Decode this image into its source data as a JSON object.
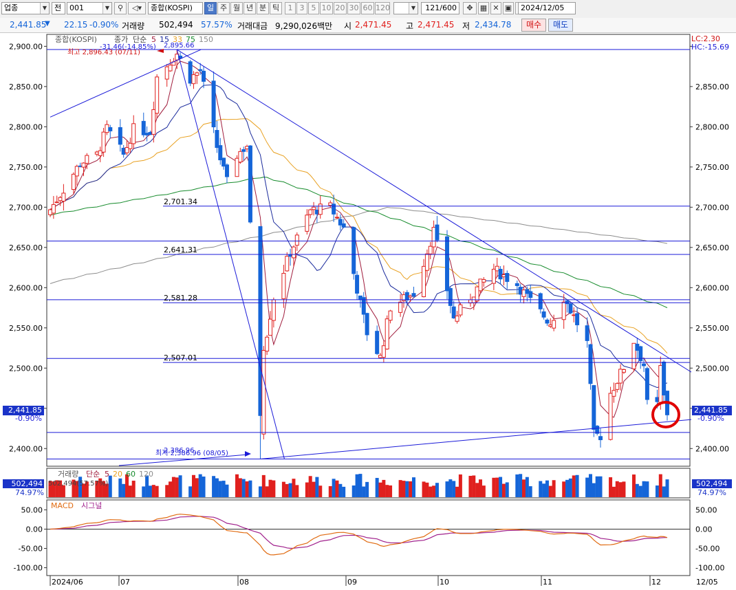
{
  "toolbar": {
    "market": "업종",
    "prefix": "전",
    "code": "001",
    "name": "종합(KOSPI)",
    "periods": [
      "일",
      "주",
      "월",
      "년",
      "분",
      "틱"
    ],
    "active_period": "일",
    "intervals": [
      "1",
      "3",
      "5",
      "10",
      "20",
      "30",
      "60",
      "120"
    ],
    "count": "121/600",
    "date": "2024/12/05"
  },
  "quote": {
    "price": "2,441.85",
    "change_arrow": "▼",
    "change": "22.15",
    "change_pct": "-0.90%",
    "volume_label": "거래량",
    "volume": "502,494",
    "volume_ratio": "57.57%",
    "amount_label": "거래대금",
    "amount": "9,290,026백만",
    "open_label": "시",
    "open": "2,471.45",
    "high_label": "고",
    "high": "2,471.45",
    "low_label": "저",
    "low": "2,434.78",
    "buy": "매수",
    "sell": "매도"
  },
  "colors": {
    "up": "#e0201e",
    "down": "#1565d8",
    "ma5": "#a01c3c",
    "ma15": "#1a2a9c",
    "ma33": "#e8a020",
    "ma75": "#148a2a",
    "ma150": "#8c8c8c",
    "trend": "#1a1ad8",
    "macd": "#e06a10",
    "signal": "#a0208c",
    "annotation": "#e00000"
  },
  "chart_data": {
    "type": "candlestick",
    "price_title": "종합(KOSPI)",
    "price_legend": [
      "종가",
      "단순",
      "5",
      "15",
      "33",
      "75",
      "150"
    ],
    "y_ticks": [
      2900,
      2850,
      2800,
      2750,
      2700,
      2650,
      2600,
      2550,
      2500,
      2450,
      2400
    ],
    "y_tick_labels": [
      "2,900.00",
      "2,850.00",
      "2,800.00",
      "2,750.00",
      "2,700.00",
      "2,650.00",
      "2,600.00",
      "2,550.00",
      "2,500.00",
      "2,450.00",
      "2,400.00"
    ],
    "ylim": [
      2378,
      2908
    ],
    "x_labels": [
      "2024/06",
      "07",
      "08",
      "09",
      "10",
      "11",
      "12",
      "12/05"
    ],
    "last_price": "2,441.85",
    "last_change": "-0.90%",
    "lc": "LC:2.30",
    "hc": "HC:-15.69",
    "high_annotation": "최고 2,896.43 (07/11)",
    "high_annotation2": "-31.46(-14.85%)",
    "high_value_label": "2,895.66",
    "low_annotation": "최저 2,386.96 (08/05)",
    "low_value_label": "2,386.96",
    "fib_levels": [
      {
        "value": 2701.34,
        "label": "2,701.34"
      },
      {
        "value": 2641.31,
        "label": "2,641.31"
      },
      {
        "value": 2581.28,
        "label": "2,581.28"
      },
      {
        "value": 2507.01,
        "label": "2,507.01"
      }
    ],
    "hlines": [
      2896,
      2701.34,
      2658,
      2641.31,
      2585,
      2581.28,
      2512,
      2507.01,
      2420,
      2387
    ],
    "trendlines": [
      {
        "from": [
          "2024/06/03",
          2812
        ],
        "to": [
          "2024/07/11",
          2896
        ]
      },
      {
        "from": [
          "2024/07/11",
          2896
        ],
        "to": [
          "2024/08/05",
          2387
        ]
      },
      {
        "from": [
          "2024/07/11",
          2896
        ],
        "to": [
          "2024/12/05",
          2495
        ]
      },
      {
        "from": [
          "2024/08/05",
          2387
        ],
        "to": [
          "2024/12/05",
          2436
        ]
      }
    ],
    "ohlc": [],
    "ma5": [],
    "ma15": [],
    "ma33": [],
    "ma75": [],
    "ma150": [],
    "volume_panel": {
      "title": "거래량",
      "legend": [
        "단순",
        "5",
        "20",
        "60",
        "120"
      ],
      "last_value": "502,494",
      "last_ratio": "74.97%",
      "overlay_text": "502,494(57.57%)",
      "values": []
    },
    "macd_panel": {
      "title": "MACD",
      "signal_title": "시그널",
      "y_ticks": [
        50,
        0,
        -50,
        -100
      ],
      "y_tick_labels": [
        "50.00",
        "0.00",
        "-50.00",
        "-100.00"
      ],
      "ylim": [
        -115,
        65
      ],
      "macd": [],
      "signal": []
    }
  }
}
